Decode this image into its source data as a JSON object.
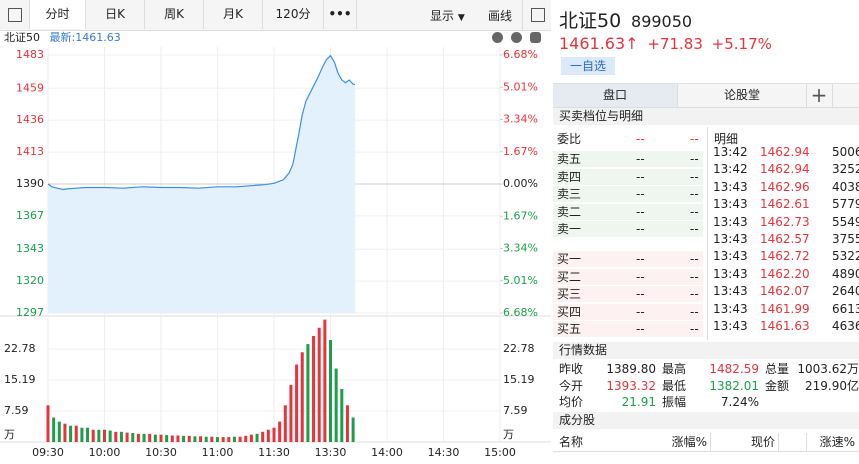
{
  "toolbar": {
    "tabs": [
      "分时",
      "日K",
      "周K",
      "月K",
      "120分",
      "•••"
    ],
    "display": "显示",
    "draw": "画线"
  },
  "chart_header": {
    "name": "北证50",
    "latest": "最新:1461.63"
  },
  "price_chart": {
    "type": "line",
    "color": "#3a8ee6",
    "x": [
      0,
      2,
      5,
      8,
      10,
      15,
      20,
      30,
      40,
      50,
      60,
      70,
      80,
      90,
      100,
      110,
      115,
      120,
      125,
      128,
      130,
      133,
      135,
      137,
      140,
      143,
      146,
      148,
      150,
      152,
      154,
      156,
      158,
      160,
      162,
      163
    ],
    "values": [
      1390,
      1388,
      1387,
      1386,
      1386.5,
      1387,
      1387.5,
      1387.5,
      1387,
      1388,
      1387.5,
      1387.5,
      1387,
      1388,
      1388,
      1389,
      1389.5,
      1390.5,
      1393,
      1398,
      1404,
      1425,
      1440,
      1450,
      1458,
      1466,
      1475,
      1480,
      1482.5,
      1478,
      1470,
      1465,
      1463,
      1465,
      1462,
      1461.63
    ],
    "xlim": [
      0,
      240
    ],
    "xticks": [
      {
        "value": 0,
        "label": "09:30"
      },
      {
        "value": 30,
        "label": "10:00"
      },
      {
        "value": 60,
        "label": "10:30"
      },
      {
        "value": 90,
        "label": "11:00"
      },
      {
        "value": 120,
        "label": "11:30"
      },
      {
        "value": 150,
        "label": "13:30"
      },
      {
        "value": 180,
        "label": "14:00"
      },
      {
        "value": 210,
        "label": "14:30"
      },
      {
        "value": 240,
        "label": "15:00"
      }
    ],
    "ylim": [
      1297,
      1483
    ],
    "yticks": [
      1297,
      1320,
      1343,
      1367,
      1390,
      1413,
      1436,
      1459,
      1483
    ],
    "y2lim": [
      -6.68,
      6.68
    ],
    "y2ticks": [
      {
        "value": -6.68,
        "label": "6.68%"
      },
      {
        "value": -5.01,
        "label": "5.01%"
      },
      {
        "value": -3.34,
        "label": "3.34%"
      },
      {
        "value": -1.67,
        "label": "1.67%"
      },
      {
        "value": 0,
        "label": "0.00%"
      },
      {
        "value": 1.67,
        "label": "1.67%"
      },
      {
        "value": 3.34,
        "label": "3.34%"
      },
      {
        "value": 5.01,
        "label": "5.01%"
      },
      {
        "value": 6.68,
        "label": "6.68%"
      }
    ],
    "up_color": "#e8333a",
    "down_color": "#1a9f4b"
  },
  "volume_chart": {
    "type": "bar",
    "unit": "万",
    "x": [
      0,
      3,
      6,
      9,
      12,
      15,
      18,
      21,
      24,
      27,
      30,
      33,
      36,
      39,
      42,
      45,
      48,
      51,
      54,
      57,
      60,
      63,
      66,
      69,
      72,
      75,
      78,
      81,
      84,
      87,
      90,
      93,
      96,
      99,
      102,
      105,
      108,
      111,
      114,
      117,
      120,
      123,
      126,
      129,
      132,
      135,
      138,
      141,
      144,
      147,
      150,
      153,
      156,
      159,
      162
    ],
    "values": [
      9,
      6,
      5,
      4.5,
      4,
      4,
      3.5,
      3.5,
      3,
      3,
      3,
      2.8,
      2.5,
      2.5,
      2.3,
      2.2,
      2,
      2,
      2,
      1.8,
      1.8,
      1.7,
      1.6,
      1.6,
      1.5,
      1.5,
      1.4,
      1.4,
      1.3,
      1.3,
      1.2,
      1.2,
      1.2,
      1.3,
      1.3,
      1.5,
      1.8,
      2,
      2.5,
      3,
      3.5,
      5,
      9,
      14,
      19,
      22,
      24,
      26,
      28,
      30,
      25,
      18,
      13,
      9,
      6
    ],
    "sides": [
      "up",
      "down",
      "down",
      "up",
      "down",
      "up",
      "down",
      "down",
      "up",
      "down",
      "up",
      "down",
      "up",
      "down",
      "up",
      "down",
      "up",
      "down",
      "up",
      "down",
      "up",
      "down",
      "up",
      "up",
      "down",
      "up",
      "down",
      "up",
      "down",
      "up",
      "down",
      "up",
      "up",
      "down",
      "up",
      "up",
      "up",
      "down",
      "up",
      "up",
      "up",
      "up",
      "up",
      "up",
      "up",
      "up",
      "down",
      "up",
      "up",
      "up",
      "down",
      "down",
      "down",
      "up",
      "down"
    ],
    "palette": {
      "up": "#e8333a",
      "down": "#1a9f4b"
    },
    "xlim": [
      0,
      240
    ],
    "ylim": [
      0,
      30.4
    ],
    "yticks": [
      7.59,
      15.19,
      22.78
    ]
  },
  "quote": {
    "name": "北证50",
    "code": "899050",
    "price": "1461.63↑",
    "change": "+71.83",
    "change_pct": "+5.17%",
    "watch": "一自选"
  },
  "tabs": [
    "盘口",
    "论股堂",
    "+"
  ],
  "book": {
    "title": "买卖档位与明细",
    "ratio": {
      "label": "委比",
      "values": [
        "--",
        "--"
      ]
    },
    "asks": [
      {
        "label": "卖五",
        "price": "--",
        "vol": "--"
      },
      {
        "label": "卖四",
        "price": "--",
        "vol": "--"
      },
      {
        "label": "卖三",
        "price": "--",
        "vol": "--"
      },
      {
        "label": "卖二",
        "price": "--",
        "vol": "--"
      },
      {
        "label": "卖一",
        "price": "--",
        "vol": "--"
      }
    ],
    "bids": [
      {
        "label": "买一",
        "price": "--",
        "vol": "--"
      },
      {
        "label": "买二",
        "price": "--",
        "vol": "--"
      },
      {
        "label": "买三",
        "price": "--",
        "vol": "--"
      },
      {
        "label": "买四",
        "price": "--",
        "vol": "--"
      },
      {
        "label": "买五",
        "price": "--",
        "vol": "--"
      }
    ],
    "detail_header": "明细",
    "detail": [
      [
        "13:42",
        "1462.94",
        "5006"
      ],
      [
        "13:42",
        "1462.94",
        "3252"
      ],
      [
        "13:43",
        "1462.96",
        "4038"
      ],
      [
        "13:43",
        "1462.61",
        "5779"
      ],
      [
        "13:43",
        "1462.73",
        "5549"
      ],
      [
        "13:43",
        "1462.57",
        "3755"
      ],
      [
        "13:43",
        "1462.72",
        "5322"
      ],
      [
        "13:43",
        "1462.20",
        "4890"
      ],
      [
        "13:43",
        "1462.07",
        "2640"
      ],
      [
        "13:43",
        "1461.99",
        "6613"
      ],
      [
        "13:43",
        "1461.63",
        "4636"
      ]
    ]
  },
  "market": {
    "title": "行情数据",
    "rows": [
      [
        "昨收",
        "1389.80",
        "最高",
        "1482.59",
        "总量",
        "1003.62万"
      ],
      [
        "今开",
        "1393.32",
        "最低",
        "1382.01",
        "金额",
        "219.90亿"
      ],
      [
        "均价",
        "21.91",
        "振幅",
        "7.24%"
      ]
    ]
  },
  "components": {
    "title": "成分股",
    "columns": [
      "名称",
      "涨幅%",
      "现价",
      "涨速%"
    ]
  }
}
